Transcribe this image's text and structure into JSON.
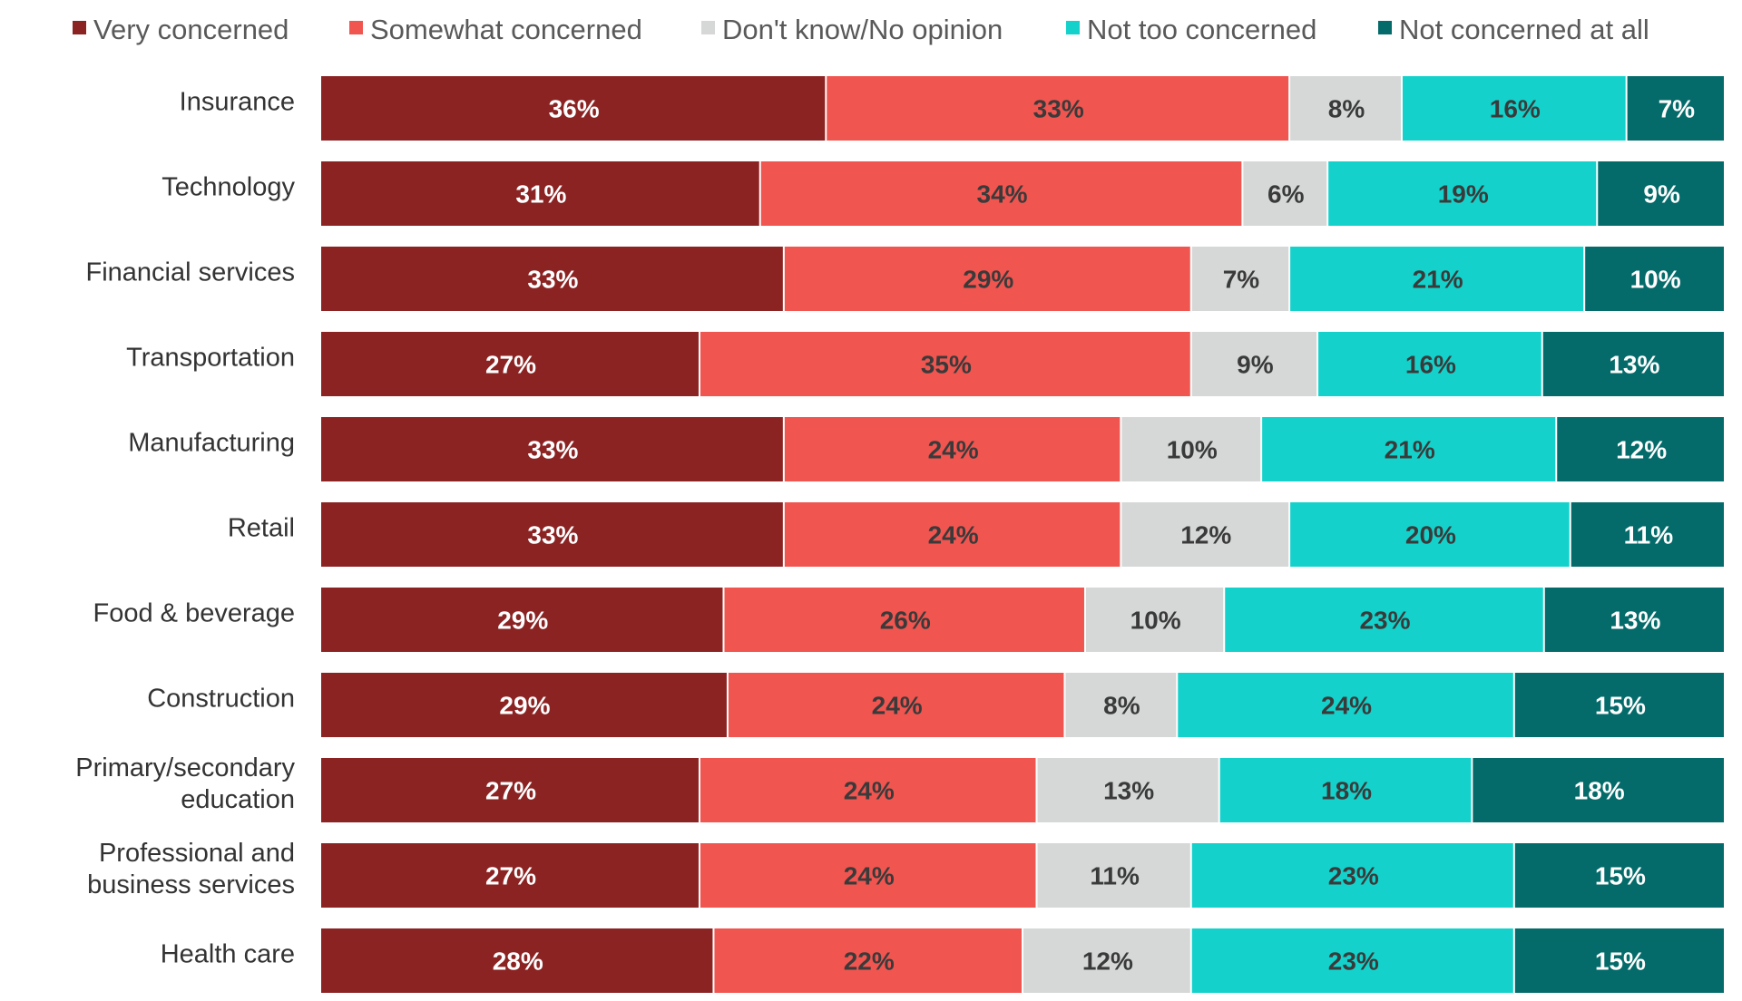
{
  "chart_data": {
    "type": "bar",
    "orientation": "horizontal",
    "stacked": true,
    "stack_mode": "percent",
    "legend_position": "top",
    "grid": false,
    "title": "",
    "xlabel": "",
    "ylabel": "",
    "categories": [
      [
        "Insurance"
      ],
      [
        "Technology"
      ],
      [
        "Financial services"
      ],
      [
        "Transportation"
      ],
      [
        "Manufacturing"
      ],
      [
        "Retail"
      ],
      [
        "Food & beverage"
      ],
      [
        "Construction"
      ],
      [
        "Primary/secondary",
        "education"
      ],
      [
        "Professional and",
        "business services"
      ],
      [
        "Health care"
      ]
    ],
    "series": [
      {
        "name": "Very concerned",
        "color": "#8b2323",
        "label_color": "#ffffff",
        "values": [
          36,
          31,
          33,
          27,
          33,
          33,
          29,
          29,
          27,
          27,
          28
        ]
      },
      {
        "name": "Somewhat concerned",
        "color": "#f05550",
        "label_color": "#3a3a3a",
        "values": [
          33,
          34,
          29,
          35,
          24,
          24,
          26,
          24,
          24,
          24,
          22
        ]
      },
      {
        "name": "Don't know/No opinion",
        "color": "#d6d8d8",
        "label_color": "#3a3a3a",
        "values": [
          8,
          6,
          7,
          9,
          10,
          12,
          10,
          8,
          13,
          11,
          12
        ]
      },
      {
        "name": "Not too concerned",
        "color": "#14d2cb",
        "label_color": "#3a3a3a",
        "values": [
          16,
          19,
          21,
          16,
          21,
          20,
          23,
          24,
          18,
          23,
          23
        ]
      },
      {
        "name": "Not concerned at all",
        "color": "#046b6a",
        "label_color": "#ffffff",
        "values": [
          7,
          9,
          10,
          13,
          12,
          11,
          13,
          15,
          18,
          15,
          15
        ]
      }
    ],
    "value_suffix": "%"
  }
}
